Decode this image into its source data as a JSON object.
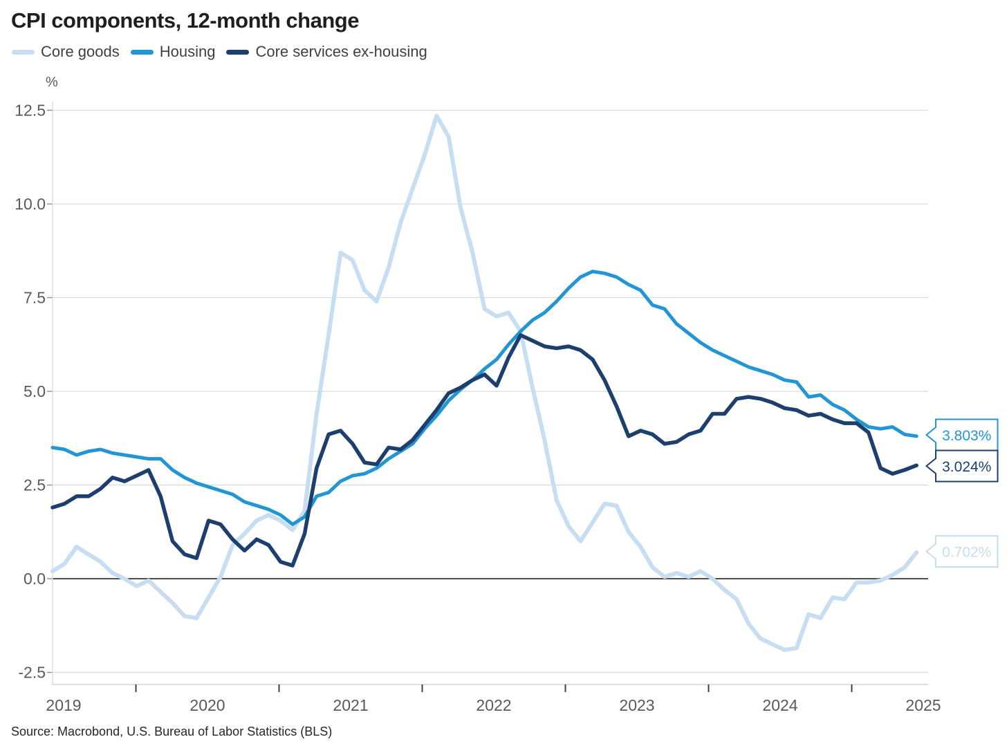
{
  "title": "CPI components, 12-month change",
  "source": "Source: Macrobond, U.S. Bureau of Labor Statistics (BLS)",
  "chart_data": {
    "type": "line",
    "title": "CPI components, 12-month change",
    "xlabel": "",
    "ylabel": "%",
    "ylim": [
      -2.5,
      12.5
    ],
    "grid": "horizontal",
    "legend_position": "top-left",
    "frequency": "monthly",
    "x_start": "2019-06",
    "x_end": "2025-06",
    "x_tick_years": [
      "2019",
      "2020",
      "2021",
      "2022",
      "2023",
      "2024",
      "2025"
    ],
    "y_ticks": [
      {
        "label": "12.5",
        "value": 12.5
      },
      {
        "label": "10.0",
        "value": 10.0
      },
      {
        "label": "7.5",
        "value": 7.5
      },
      {
        "label": "5.0",
        "value": 5.0
      },
      {
        "label": "2.5",
        "value": 2.5
      },
      {
        "label": "0.0",
        "value": 0.0
      },
      {
        "label": "-2.5",
        "value": -2.5
      }
    ],
    "series": [
      {
        "name": "Core goods",
        "color": "#c7ddf1",
        "end_label": "0.702%",
        "values": [
          0.2,
          0.4,
          0.85,
          0.65,
          0.45,
          0.15,
          0.0,
          -0.2,
          -0.05,
          -0.35,
          -0.65,
          -1.0,
          -1.05,
          -0.5,
          0.05,
          0.9,
          1.2,
          1.55,
          1.7,
          1.55,
          1.3,
          1.8,
          4.4,
          6.5,
          8.7,
          8.5,
          7.7,
          7.4,
          8.3,
          9.5,
          10.4,
          11.3,
          12.35,
          11.8,
          9.9,
          8.7,
          7.2,
          7.0,
          7.1,
          6.6,
          5.1,
          3.7,
          2.1,
          1.4,
          1.0,
          1.5,
          2.0,
          1.95,
          1.25,
          0.85,
          0.3,
          0.05,
          0.15,
          0.05,
          0.2,
          0.0,
          -0.3,
          -0.55,
          -1.2,
          -1.6,
          -1.75,
          -1.9,
          -1.85,
          -0.95,
          -1.05,
          -0.5,
          -0.55,
          -0.1,
          -0.1,
          -0.05,
          0.1,
          0.3,
          0.702
        ]
      },
      {
        "name": "Housing",
        "color": "#2196d3",
        "end_label": "3.803%",
        "values": [
          3.5,
          3.45,
          3.3,
          3.4,
          3.45,
          3.35,
          3.3,
          3.25,
          3.2,
          3.2,
          2.9,
          2.7,
          2.55,
          2.45,
          2.35,
          2.25,
          2.05,
          1.95,
          1.85,
          1.7,
          1.45,
          1.65,
          2.2,
          2.3,
          2.6,
          2.75,
          2.8,
          2.95,
          3.2,
          3.4,
          3.6,
          4.0,
          4.35,
          4.75,
          5.05,
          5.3,
          5.6,
          5.85,
          6.25,
          6.6,
          6.9,
          7.1,
          7.4,
          7.75,
          8.05,
          8.2,
          8.15,
          8.05,
          7.85,
          7.7,
          7.3,
          7.2,
          6.8,
          6.55,
          6.3,
          6.1,
          5.95,
          5.8,
          5.65,
          5.55,
          5.45,
          5.3,
          5.25,
          4.85,
          4.9,
          4.65,
          4.5,
          4.25,
          4.05,
          4.0,
          4.05,
          3.85,
          3.803
        ]
      },
      {
        "name": "Core services ex-housing",
        "color": "#1c3f6e",
        "end_label": "3.024%",
        "values": [
          1.9,
          2.0,
          2.2,
          2.2,
          2.4,
          2.7,
          2.6,
          2.75,
          2.9,
          2.2,
          1.0,
          0.65,
          0.55,
          1.55,
          1.45,
          1.05,
          0.75,
          1.05,
          0.9,
          0.45,
          0.35,
          1.2,
          2.95,
          3.85,
          3.95,
          3.6,
          3.1,
          3.05,
          3.5,
          3.45,
          3.7,
          4.1,
          4.5,
          4.95,
          5.1,
          5.3,
          5.45,
          5.15,
          5.9,
          6.5,
          6.35,
          6.2,
          6.15,
          6.2,
          6.1,
          5.85,
          5.3,
          4.6,
          3.8,
          3.95,
          3.85,
          3.6,
          3.65,
          3.85,
          3.95,
          4.4,
          4.4,
          4.8,
          4.85,
          4.8,
          4.7,
          4.55,
          4.5,
          4.35,
          4.4,
          4.25,
          4.15,
          4.15,
          3.9,
          2.95,
          2.8,
          2.9,
          3.024
        ]
      }
    ]
  }
}
